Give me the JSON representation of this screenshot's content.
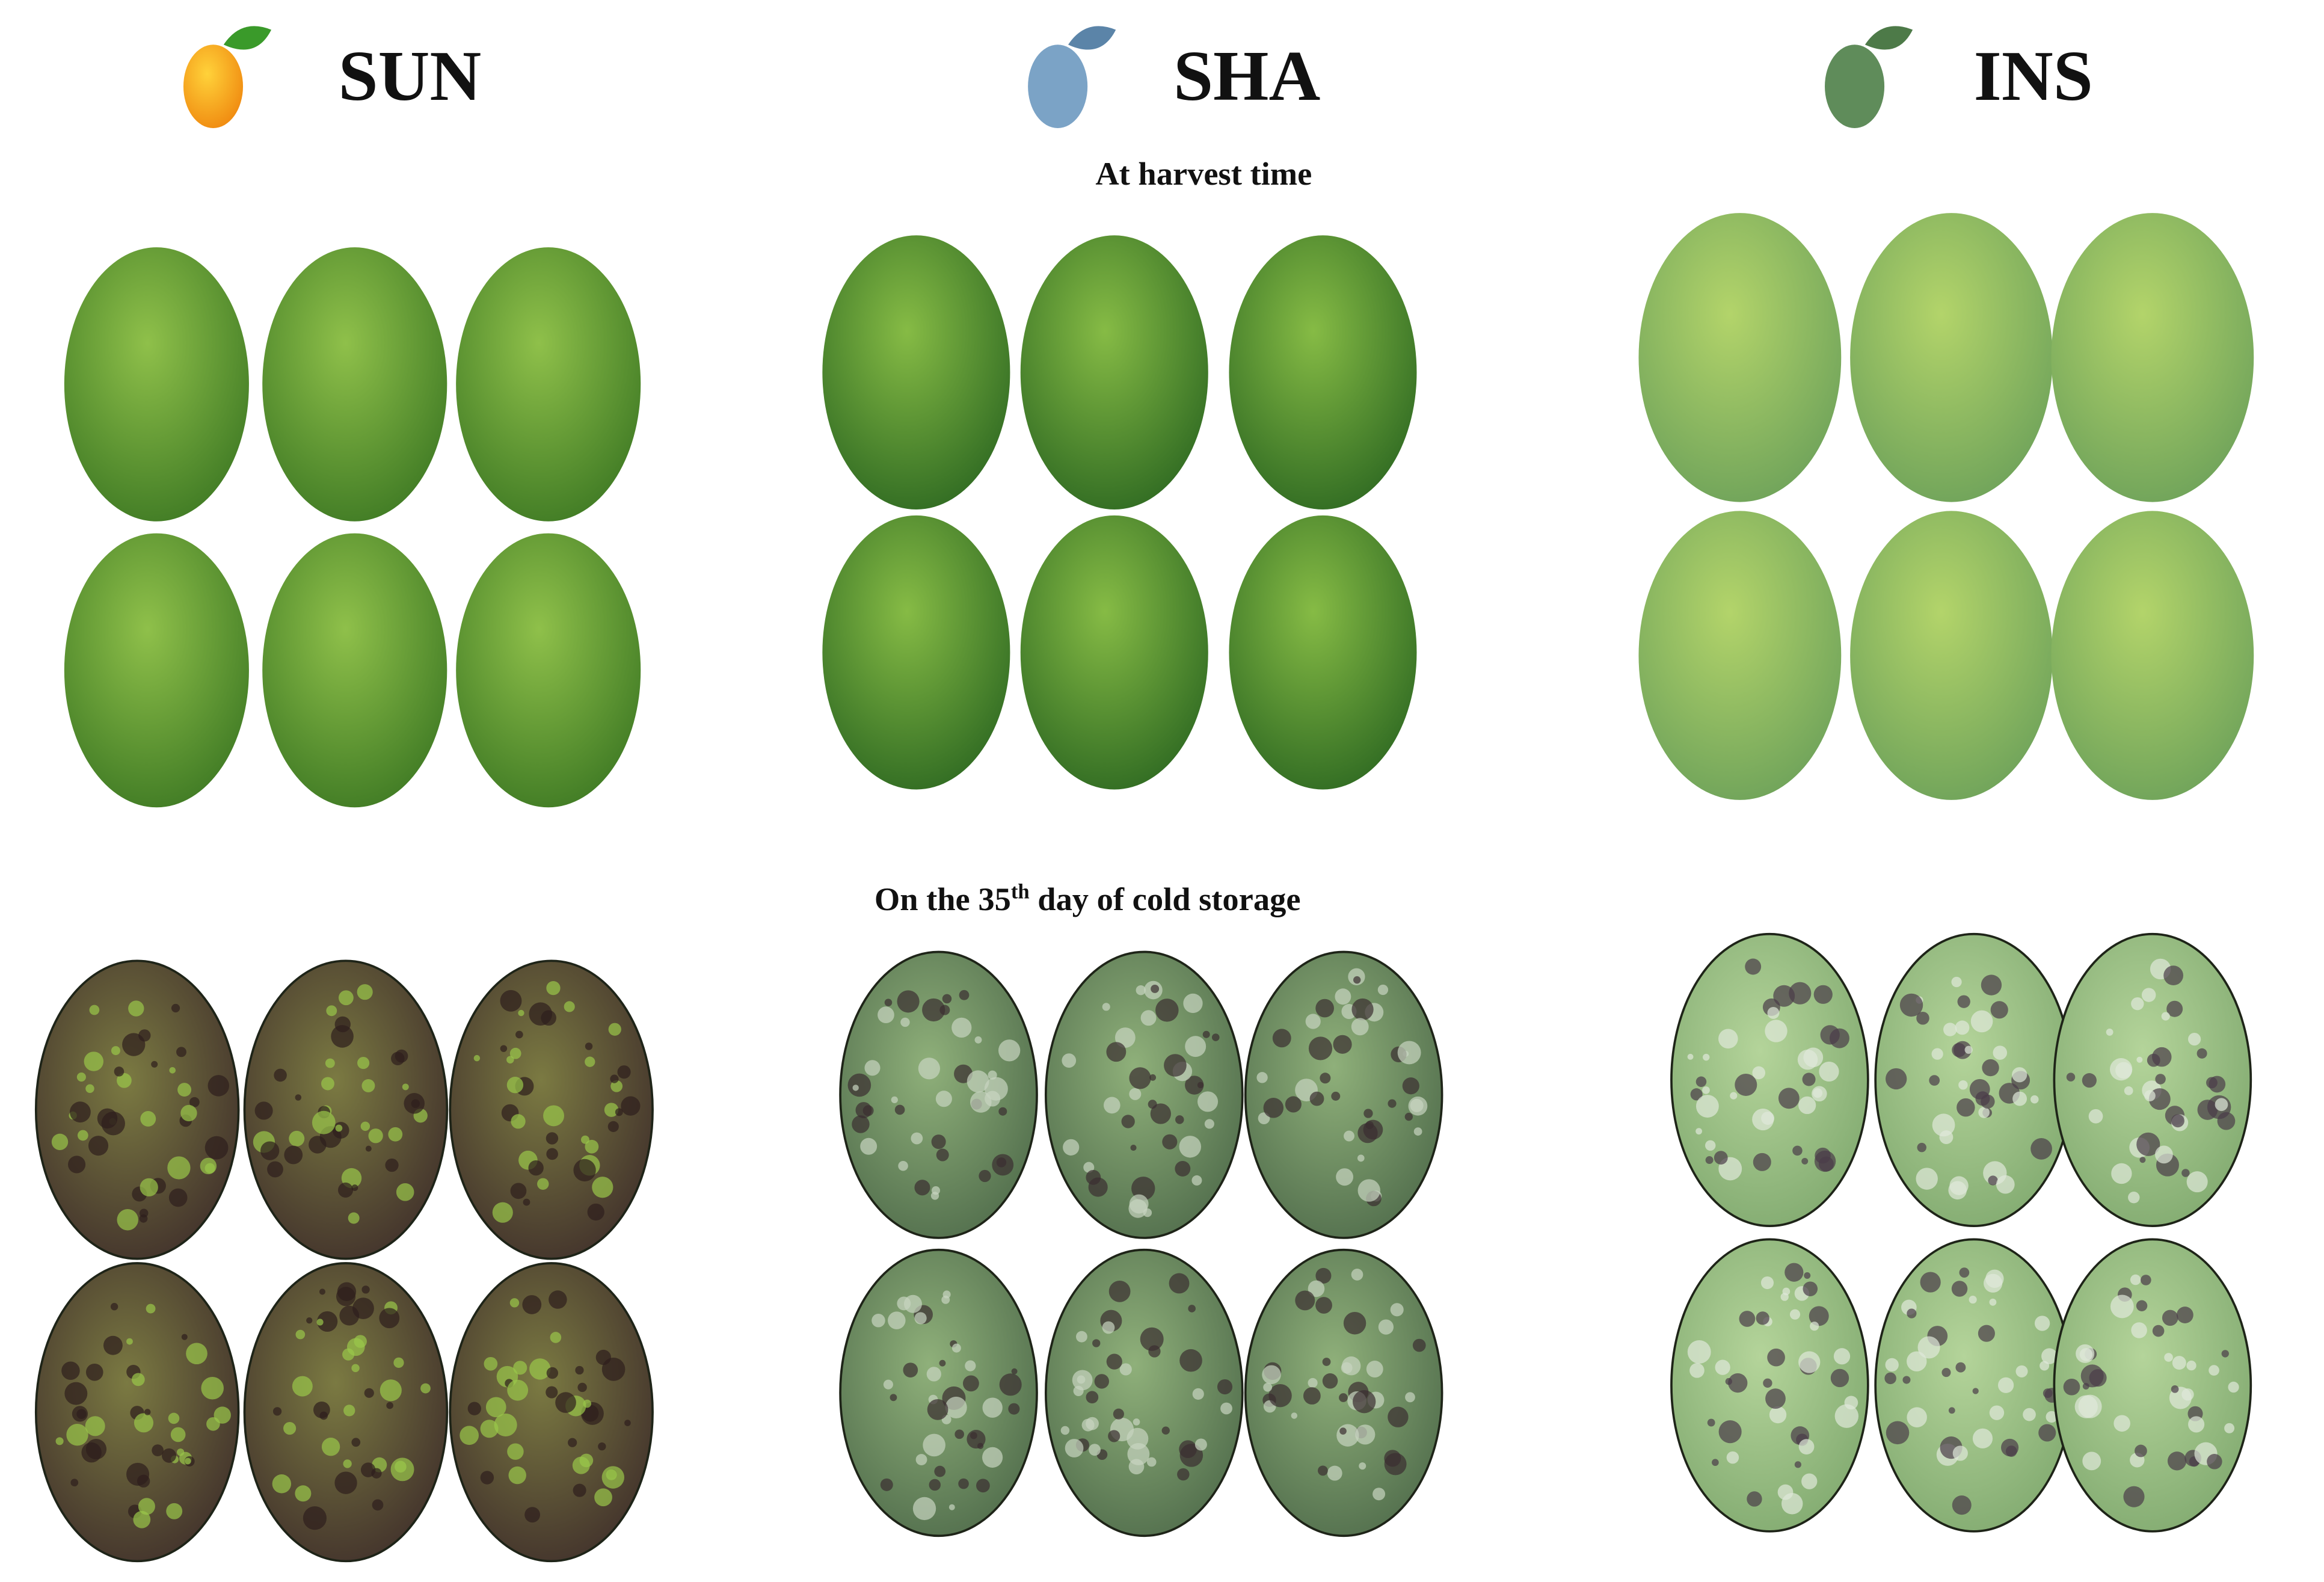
{
  "columns": [
    {
      "label": "SUN"
    },
    {
      "label": "SHA"
    },
    {
      "label": "INS"
    }
  ],
  "captions": {
    "harvest": "At harvest time",
    "storage": {
      "before": "On the 35",
      "sup": "th",
      "after": " day of cold storage"
    }
  }
}
